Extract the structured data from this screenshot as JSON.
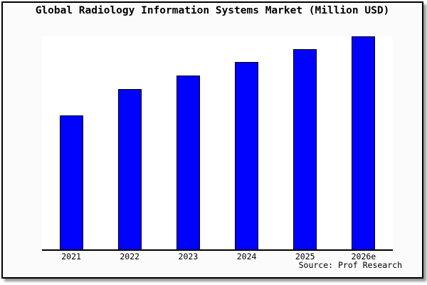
{
  "chart_data": {
    "type": "bar",
    "title": "Global Radiology Information Systems Market (Million USD)",
    "categories": [
      "2021",
      "2022",
      "2023",
      "2024",
      "2025",
      "2026e"
    ],
    "values": [
      188,
      225,
      244,
      263,
      281,
      299
    ],
    "values_note": "y-axis is unlabeled in the source chart; values are relative bar heights estimated in plot pixels",
    "xlabel": "",
    "ylabel": "",
    "ylim": [
      0,
      300
    ],
    "grid": false,
    "legend": false,
    "source_note": "Source: Prof Research",
    "bar_fill_color": "#0101fe",
    "bar_border_color": "#000000",
    "plot_background": "#ffffff",
    "page_background": "#fbfbfb",
    "frame_border_color": "#000000"
  }
}
